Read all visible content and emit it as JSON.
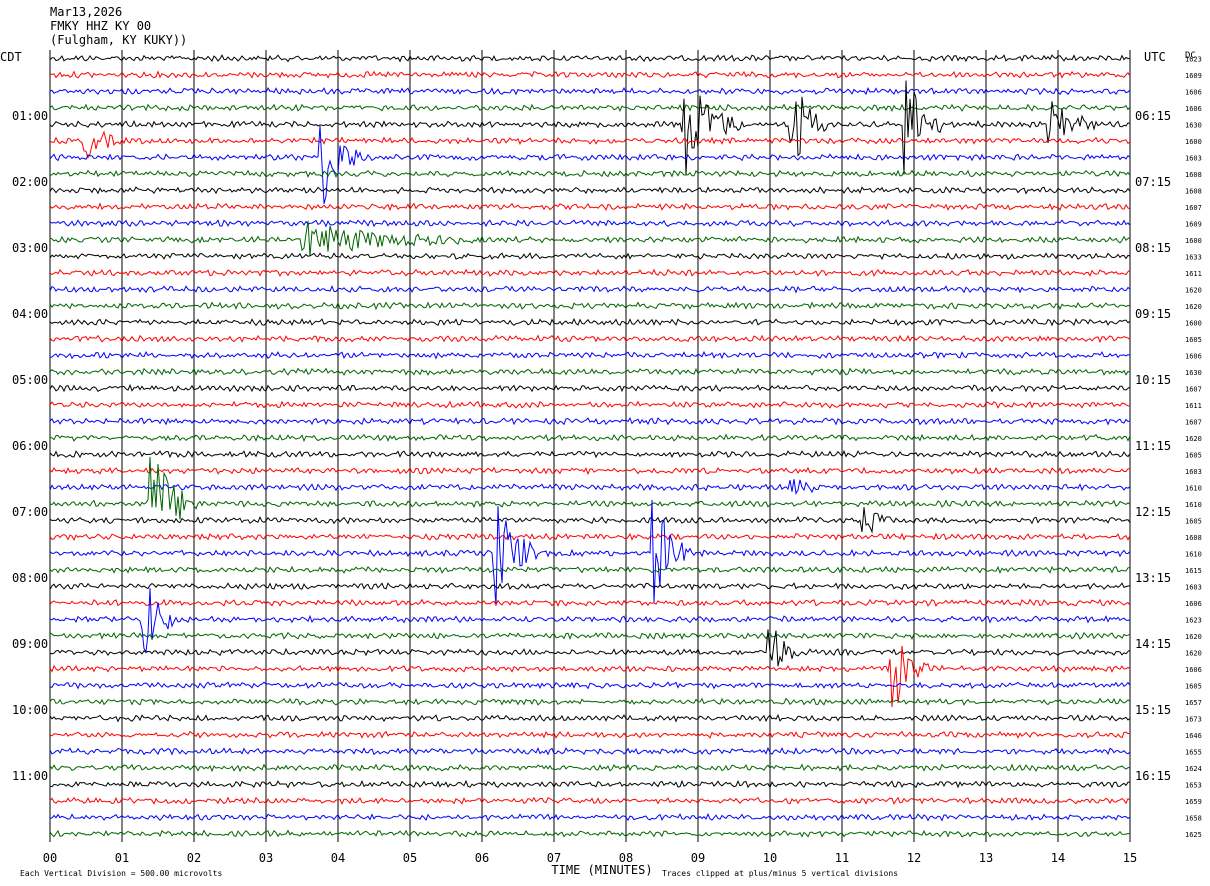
{
  "header": {
    "date": "Mar13,2026",
    "station": "FMKY HHZ KY 00",
    "location": "(Fulgham, KY KUKY))"
  },
  "chart_data": {
    "type": "helicorder",
    "left_axis_label": "CDT",
    "right_axis_label": "UTC",
    "corner_label": "DC",
    "xlabel": "TIME (MINUTES)",
    "x_range": [
      0,
      15
    ],
    "x_ticks": [
      "00",
      "01",
      "02",
      "03",
      "04",
      "05",
      "06",
      "07",
      "08",
      "09",
      "10",
      "11",
      "12",
      "13",
      "14",
      "15"
    ],
    "left_hour_labels": [
      "01:00",
      "02:00",
      "03:00",
      "04:00",
      "05:00",
      "06:00",
      "07:00",
      "08:00",
      "09:00",
      "10:00",
      "11:00"
    ],
    "right_hour_labels": [
      "06:15",
      "07:15",
      "08:15",
      "09:15",
      "10:15",
      "11:15",
      "12:15",
      "13:15",
      "14:15",
      "15:15",
      "16:15"
    ],
    "rows_per_hour": 4,
    "row_count": 48,
    "trace_colors": [
      "#000000",
      "#ff0000",
      "#0000ff",
      "#006400"
    ],
    "dc_offsets": [
      "1623",
      "1609",
      "1606",
      "1606",
      "1630",
      "1600",
      "1603",
      "1608",
      "1608",
      "1607",
      "1609",
      "1600",
      "1633",
      "1611",
      "1620",
      "1620",
      "1600",
      "1605",
      "1606",
      "1630",
      "1607",
      "1611",
      "1607",
      "1620",
      "1605",
      "1603",
      "1610",
      "1610",
      "1605",
      "1608",
      "1610",
      "1615",
      "1603",
      "1606",
      "1623",
      "1620",
      "1620",
      "1606",
      "1605",
      "1657",
      "1673",
      "1646",
      "1655",
      "1624",
      "1653",
      "1659",
      "1658",
      "1625"
    ],
    "events": [
      {
        "row": 6,
        "minute": 3.8,
        "amplitude": 5,
        "duration_min": 0.6
      },
      {
        "row": 4,
        "minute": 8.8,
        "amplitude": 6,
        "duration_min": 0.8
      },
      {
        "row": 4,
        "minute": 10.3,
        "amplitude": 6,
        "duration_min": 0.5
      },
      {
        "row": 4,
        "minute": 11.9,
        "amplitude": 6,
        "duration_min": 0.5
      },
      {
        "row": 4,
        "minute": 13.9,
        "amplitude": 4,
        "duration_min": 0.6
      },
      {
        "row": 5,
        "minute": 0.5,
        "amplitude": 2,
        "duration_min": 0.6
      },
      {
        "row": 11,
        "minute": 3.5,
        "amplitude": 2,
        "duration_min": 2.8
      },
      {
        "row": 27,
        "minute": 1.4,
        "amplitude": 6,
        "duration_min": 0.7
      },
      {
        "row": 26,
        "minute": 10.3,
        "amplitude": 2,
        "duration_min": 0.5
      },
      {
        "row": 28,
        "minute": 11.3,
        "amplitude": 2,
        "duration_min": 0.5
      },
      {
        "row": 30,
        "minute": 6.2,
        "amplitude": 6,
        "duration_min": 0.6
      },
      {
        "row": 30,
        "minute": 8.4,
        "amplitude": 6,
        "duration_min": 0.5
      },
      {
        "row": 34,
        "minute": 1.3,
        "amplitude": 5,
        "duration_min": 0.5
      },
      {
        "row": 36,
        "minute": 10.0,
        "amplitude": 4,
        "duration_min": 0.4
      },
      {
        "row": 37,
        "minute": 11.7,
        "amplitude": 5,
        "duration_min": 0.5
      }
    ],
    "footer_left": "Each Vertical Division =  500.00 microvolts",
    "footer_right": "Traces clipped at plus/minus 5 vertical divisions"
  }
}
